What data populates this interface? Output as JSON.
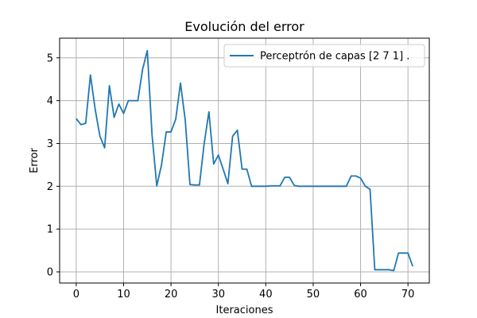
{
  "chart_data": {
    "type": "line",
    "title": "Evolución del error",
    "xlabel": "Iteraciones",
    "ylabel": "Error",
    "xlim": [
      -3.5,
      74.5
    ],
    "ylim": [
      -0.26,
      5.46
    ],
    "xticks": [
      0,
      10,
      20,
      30,
      40,
      50,
      60,
      70
    ],
    "yticks": [
      0,
      1,
      2,
      3,
      4,
      5
    ],
    "grid": true,
    "legend_position": "top-right",
    "series": [
      {
        "name": "Perceptrón de capas [2 7 1] .",
        "color": "#1f77b4",
        "x": [
          0,
          1,
          2,
          3,
          4,
          5,
          6,
          7,
          8,
          9,
          10,
          11,
          12,
          13,
          14,
          15,
          16,
          17,
          18,
          19,
          20,
          21,
          22,
          23,
          24,
          25,
          26,
          27,
          28,
          29,
          30,
          31,
          32,
          33,
          34,
          35,
          36,
          37,
          38,
          39,
          40,
          41,
          42,
          43,
          44,
          45,
          46,
          47,
          48,
          49,
          50,
          51,
          52,
          53,
          54,
          55,
          56,
          57,
          58,
          59,
          60,
          61,
          62,
          63,
          64,
          65,
          66,
          67,
          68,
          69,
          70,
          71
        ],
        "y": [
          3.58,
          3.44,
          3.47,
          4.6,
          3.8,
          3.17,
          2.9,
          4.35,
          3.61,
          3.92,
          3.7,
          4.0,
          4.0,
          4.0,
          4.73,
          5.17,
          3.2,
          2.01,
          2.5,
          3.27,
          3.27,
          3.57,
          4.41,
          3.55,
          2.04,
          2.03,
          2.03,
          3.0,
          3.74,
          2.52,
          2.73,
          2.4,
          2.06,
          3.17,
          3.31,
          2.4,
          2.4,
          2.0,
          2.0,
          2.0,
          2.0,
          2.01,
          2.01,
          2.01,
          2.21,
          2.21,
          2.02,
          2.0,
          2.0,
          2.0,
          2.0,
          2.0,
          2.0,
          2.0,
          2.0,
          2.0,
          2.0,
          2.0,
          2.24,
          2.24,
          2.19,
          2.0,
          1.93,
          0.05,
          0.05,
          0.05,
          0.05,
          0.03,
          0.44,
          0.44,
          0.44,
          0.13
        ]
      }
    ]
  }
}
